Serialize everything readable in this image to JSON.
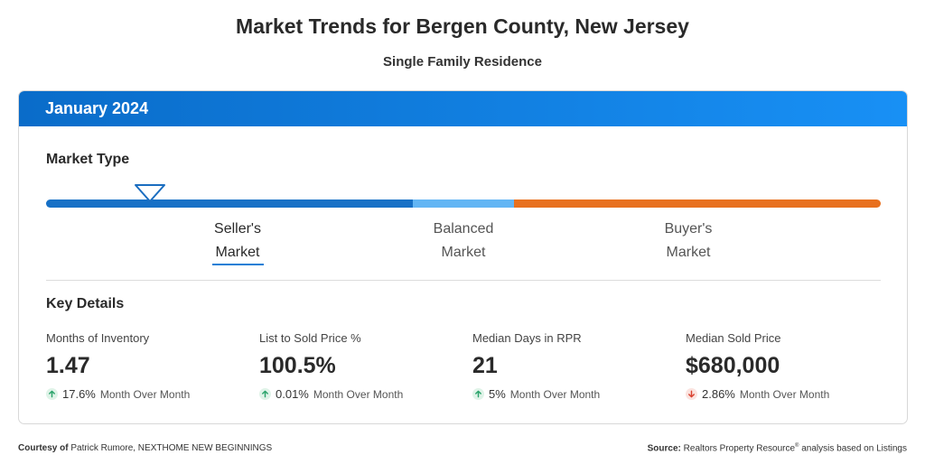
{
  "header": {
    "title": "Market Trends for Bergen County, New Jersey",
    "subtitle": "Single Family Residence"
  },
  "card": {
    "period": "January 2024",
    "market_type": {
      "title": "Market Type",
      "segments": [
        {
          "name": "Seller's Market",
          "line1": "Seller's",
          "line2": "Market",
          "color": "#1670c6",
          "active": true
        },
        {
          "name": "Balanced Market",
          "line1": "Balanced",
          "line2": "Market",
          "color": "#62b5f4",
          "active": false
        },
        {
          "name": "Buyer's Market",
          "line1": "Buyer's",
          "line2": "Market",
          "color": "#e8701e",
          "active": false
        }
      ]
    },
    "key_details": {
      "title": "Key Details",
      "metrics": [
        {
          "label": "Months of Inventory",
          "value": "1.47",
          "change": "17.6%",
          "direction": "up",
          "period": "Month Over Month"
        },
        {
          "label": "List to Sold Price %",
          "value": "100.5%",
          "change": "0.01%",
          "direction": "up",
          "period": "Month Over Month"
        },
        {
          "label": "Median Days in RPR",
          "value": "21",
          "change": "5%",
          "direction": "up",
          "period": "Month Over Month"
        },
        {
          "label": "Median Sold Price",
          "value": "$680,000",
          "change": "2.86%",
          "direction": "down",
          "period": "Month Over Month"
        }
      ]
    }
  },
  "footer": {
    "courtesy_label": "Courtesy of",
    "courtesy_text": "Patrick Rumore, NEXTHOME NEW BEGINNINGS",
    "source_label": "Source:",
    "source_text_a": "Realtors Property Resource",
    "source_mark": "®",
    "source_text_b": " analysis based on Listings"
  },
  "colors": {
    "up": "#2aa36b",
    "up_bg": "#dff3e8",
    "down": "#d9412f",
    "down_bg": "#fbe3df"
  }
}
